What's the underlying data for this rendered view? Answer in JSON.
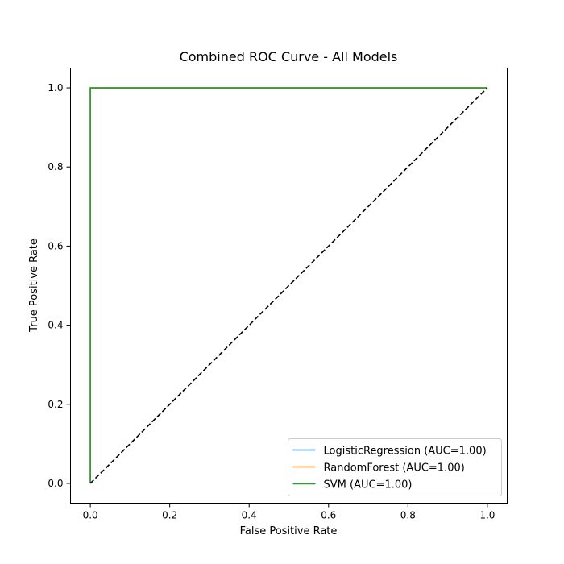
{
  "chart_data": {
    "type": "line",
    "title": "Combined ROC Curve - All Models",
    "xlabel": "False Positive Rate",
    "ylabel": "True Positive Rate",
    "xlim": [
      -0.05,
      1.05
    ],
    "ylim": [
      -0.05,
      1.05
    ],
    "x_ticks": [
      "0.0",
      "0.2",
      "0.4",
      "0.6",
      "0.8",
      "1.0"
    ],
    "y_ticks": [
      "0.0",
      "0.2",
      "0.4",
      "0.6",
      "0.8",
      "1.0"
    ],
    "x_tick_values": [
      0.0,
      0.2,
      0.4,
      0.6,
      0.8,
      1.0
    ],
    "y_tick_values": [
      0.0,
      0.2,
      0.4,
      0.6,
      0.8,
      1.0
    ],
    "grid": false,
    "legend_position": "lower-right",
    "series": [
      {
        "name": "LogisticRegression (AUC=1.00)",
        "color": "#1f77b4",
        "x": [
          0.0,
          0.0,
          1.0
        ],
        "y": [
          0.0,
          1.0,
          1.0
        ]
      },
      {
        "name": "RandomForest (AUC=1.00)",
        "color": "#ff7f0e",
        "x": [
          0.0,
          0.0,
          1.0
        ],
        "y": [
          0.0,
          1.0,
          1.0
        ]
      },
      {
        "name": "SVM (AUC=1.00)",
        "color": "#2ca02c",
        "x": [
          0.0,
          0.0,
          1.0
        ],
        "y": [
          0.0,
          1.0,
          1.0
        ]
      }
    ],
    "reference_line": {
      "style": "dashed",
      "color": "#000000",
      "x": [
        0.0,
        1.0
      ],
      "y": [
        0.0,
        1.0
      ]
    }
  }
}
